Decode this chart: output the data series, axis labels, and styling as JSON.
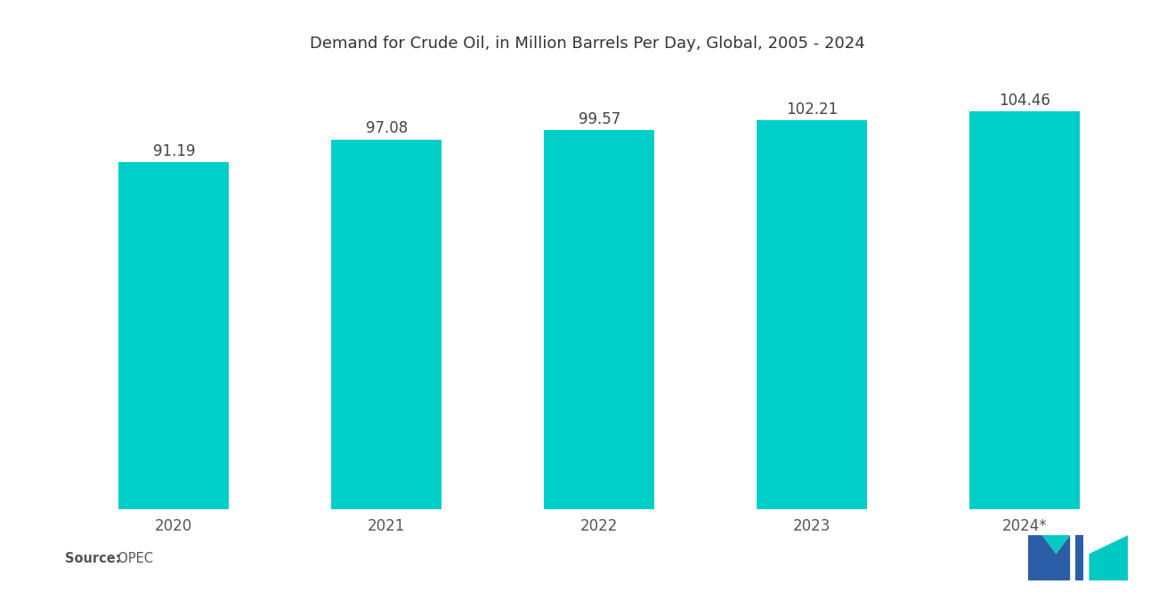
{
  "title": "Demand for Crude Oil, in Million Barrels Per Day, Global, 2005 - 2024",
  "categories": [
    "2020",
    "2021",
    "2022",
    "2023",
    "2024*"
  ],
  "values": [
    91.19,
    97.08,
    99.57,
    102.21,
    104.46
  ],
  "bar_color": "#00CEC8",
  "background_color": "#ffffff",
  "title_fontsize": 13,
  "label_fontsize": 12,
  "value_fontsize": 12,
  "source_label": "Source:",
  "source_value": "  OPEC",
  "ylim_min": 0,
  "ylim_max": 112
}
